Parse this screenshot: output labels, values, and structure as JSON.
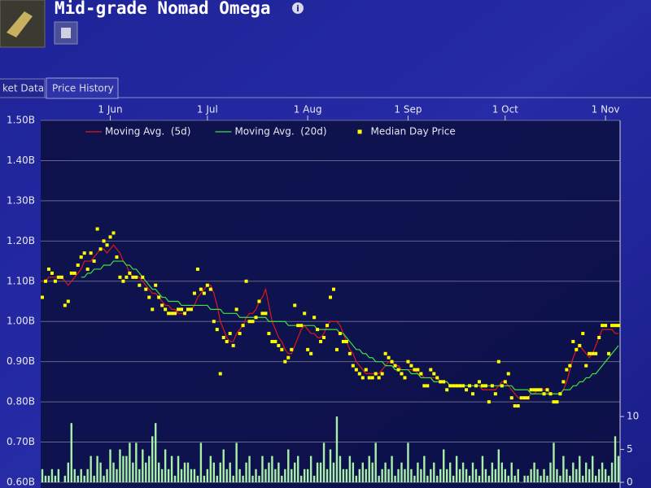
{
  "header": {
    "title": "Mid-grade Nomad Omega"
  },
  "tabs": [
    "ket Data",
    "Price History"
  ],
  "chart_data": {
    "type": "line",
    "categories": [
      null,
      null,
      null,
      null,
      null,
      null,
      null,
      null,
      null,
      null,
      null,
      null,
      null,
      null,
      null,
      null,
      null,
      null,
      null,
      null,
      null,
      "1 Jun",
      null,
      null,
      null,
      null,
      null,
      null,
      null,
      null,
      null,
      null,
      null,
      null,
      null,
      null,
      null,
      null,
      null,
      null,
      null,
      null,
      null,
      null,
      null,
      null,
      null,
      null,
      null,
      null,
      null,
      "1 Jul",
      null,
      null,
      null,
      null,
      null,
      null,
      null,
      null,
      null,
      null,
      null,
      null,
      null,
      null,
      null,
      null,
      null,
      null,
      null,
      null,
      null,
      null,
      null,
      null,
      null,
      null,
      null,
      null,
      null,
      null,
      "1 Aug",
      null,
      null,
      null,
      null,
      null,
      null,
      null,
      null,
      null,
      null,
      null,
      null,
      null,
      null,
      null,
      null,
      null,
      null,
      null,
      null,
      null,
      null,
      null,
      null,
      null,
      null,
      null,
      null,
      null,
      null,
      "1 Sep",
      null,
      null,
      null,
      null,
      null,
      null,
      null,
      null,
      null,
      null,
      null,
      null,
      null,
      null,
      null,
      null,
      null,
      null,
      null,
      null,
      null,
      null,
      null,
      null,
      null,
      null,
      null,
      null,
      null,
      "1 Oct",
      null,
      null,
      null,
      null,
      null,
      null,
      null,
      null,
      null,
      null,
      null,
      null,
      null,
      null,
      null,
      null,
      null,
      null,
      null,
      null,
      null,
      null,
      null,
      null,
      null,
      null,
      null,
      null,
      null,
      null,
      "1 Nov",
      null,
      null,
      null,
      null
    ],
    "ylim": [
      0.6,
      1.5
    ],
    "yticks": [
      {
        "value": 0.6,
        "label": "0.60B"
      },
      {
        "value": 0.7,
        "label": "0.70B"
      },
      {
        "value": 0.8,
        "label": "0.80B"
      },
      {
        "value": 0.9,
        "label": "0.90B"
      },
      {
        "value": 1.0,
        "label": "1.00B"
      },
      {
        "value": 1.1,
        "label": "1.10B"
      },
      {
        "value": 1.2,
        "label": "1.20B"
      },
      {
        "value": 1.3,
        "label": "1.30B"
      },
      {
        "value": 1.4,
        "label": "1.40B"
      },
      {
        "value": 1.5,
        "label": "1.50B"
      }
    ],
    "y2lim": [
      0,
      55
    ],
    "y2ticks": [
      0,
      5,
      10
    ],
    "grid": true,
    "legend": "top",
    "series": [
      {
        "type": "bar",
        "axis": "y2",
        "color": "#a8f0a8",
        "values": [
          2,
          1,
          1,
          2,
          1,
          2,
          0,
          1,
          3,
          9,
          2,
          1,
          2,
          1,
          2,
          4,
          1,
          4,
          3,
          1,
          2,
          5,
          3,
          2,
          5,
          4,
          4,
          6,
          3,
          6,
          2,
          5,
          3,
          4,
          7,
          9,
          3,
          2,
          5,
          2,
          4,
          1,
          4,
          2,
          3,
          3,
          2,
          2,
          1,
          6,
          1,
          2,
          4,
          3,
          1,
          3,
          5,
          2,
          3,
          1,
          6,
          2,
          1,
          3,
          4,
          1,
          2,
          1,
          4,
          2,
          3,
          4,
          2,
          3,
          1,
          2,
          5,
          2,
          3,
          4,
          1,
          2,
          2,
          4,
          1,
          3,
          3,
          6,
          2,
          5,
          3,
          10,
          4,
          2,
          2,
          4,
          3,
          1,
          2,
          3,
          2,
          4,
          3,
          6,
          1,
          2,
          3,
          2,
          4,
          1,
          2,
          3,
          2,
          6,
          2,
          1,
          3,
          2,
          4,
          1,
          2,
          3,
          1,
          2,
          5,
          2,
          3,
          1,
          4,
          2,
          3,
          2,
          1,
          3,
          2,
          1,
          4,
          2,
          1,
          3,
          2,
          5,
          3,
          2,
          1,
          3,
          1,
          2,
          0,
          1,
          1,
          2,
          3,
          2,
          1,
          2,
          1,
          3,
          6,
          2,
          1,
          4,
          2,
          1,
          3,
          2,
          4,
          1,
          3,
          2,
          4,
          1,
          2,
          3,
          2,
          1,
          3,
          7,
          4
        ]
      },
      {
        "type": "line",
        "name": "Moving Avg.  (5d)",
        "color": "#e01818",
        "values": [
          1.1,
          1.1,
          1.11,
          1.11,
          1.11,
          1.11,
          1.11,
          1.1,
          1.09,
          1.1,
          1.11,
          1.12,
          1.13,
          1.15,
          1.15,
          1.15,
          1.16,
          1.17,
          1.18,
          1.18,
          1.17,
          1.18,
          1.19,
          1.18,
          1.17,
          1.15,
          1.14,
          1.12,
          1.11,
          1.11,
          1.11,
          1.1,
          1.09,
          1.08,
          1.07,
          1.07,
          1.06,
          1.05,
          1.04,
          1.04,
          1.03,
          1.03,
          1.02,
          1.02,
          1.02,
          1.03,
          1.03,
          1.04,
          1.06,
          1.07,
          1.08,
          1.09,
          1.09,
          1.07,
          1.04,
          1.0,
          0.98,
          0.96,
          0.95,
          0.95,
          0.97,
          0.98,
          0.99,
          1.01,
          1.02,
          1.02,
          1.03,
          1.05,
          1.06,
          1.08,
          1.04,
          1.0,
          0.98,
          0.96,
          0.95,
          0.93,
          0.92,
          0.92,
          0.94,
          0.96,
          0.98,
          0.99,
          0.98,
          0.97,
          0.97,
          0.96,
          0.96,
          0.97,
          0.99,
          1.0,
          1.0,
          1.0,
          0.99,
          0.97,
          0.95,
          0.93,
          0.92,
          0.9,
          0.89,
          0.88,
          0.87,
          0.87,
          0.87,
          0.87,
          0.87,
          0.88,
          0.89,
          0.9,
          0.9,
          0.89,
          0.89,
          0.88,
          0.88,
          0.88,
          0.88,
          0.88,
          0.87,
          0.87,
          0.86,
          0.86,
          0.86,
          0.86,
          0.86,
          0.85,
          0.85,
          0.85,
          0.84,
          0.84,
          0.84,
          0.84,
          0.84,
          0.84,
          0.84,
          0.84,
          0.84,
          0.84,
          0.83,
          0.83,
          0.83,
          0.83,
          0.83,
          0.84,
          0.85,
          0.85,
          0.84,
          0.83,
          0.82,
          0.81,
          0.81,
          0.81,
          0.81,
          0.82,
          0.82,
          0.83,
          0.83,
          0.83,
          0.83,
          0.82,
          0.82,
          0.82,
          0.82,
          0.83,
          0.85,
          0.88,
          0.91,
          0.93,
          0.94,
          0.93,
          0.92,
          0.91,
          0.92,
          0.94,
          0.96,
          0.98,
          0.98,
          0.98,
          0.98,
          0.97,
          0.97
        ]
      },
      {
        "type": "line",
        "name": "Moving Avg.  (20d)",
        "color": "#40e040",
        "values": [
          null,
          null,
          null,
          null,
          null,
          null,
          null,
          null,
          null,
          null,
          null,
          null,
          1.11,
          1.11,
          1.12,
          1.12,
          1.13,
          1.13,
          1.13,
          1.14,
          1.14,
          1.14,
          1.15,
          1.15,
          1.15,
          1.15,
          1.14,
          1.14,
          1.13,
          1.13,
          1.12,
          1.11,
          1.1,
          1.09,
          1.08,
          1.08,
          1.07,
          1.06,
          1.06,
          1.05,
          1.05,
          1.05,
          1.05,
          1.04,
          1.04,
          1.04,
          1.04,
          1.04,
          1.04,
          1.04,
          1.04,
          1.04,
          1.03,
          1.03,
          1.03,
          1.03,
          1.02,
          1.02,
          1.02,
          1.02,
          1.02,
          1.01,
          1.01,
          1.01,
          1.01,
          1.01,
          1.01,
          1.01,
          1.01,
          1.01,
          1.0,
          1.0,
          1.0,
          1.0,
          1.0,
          1.0,
          0.99,
          0.99,
          0.99,
          0.99,
          0.99,
          0.99,
          0.99,
          0.99,
          0.99,
          0.98,
          0.98,
          0.98,
          0.98,
          0.98,
          0.98,
          0.98,
          0.97,
          0.97,
          0.96,
          0.95,
          0.94,
          0.93,
          0.93,
          0.92,
          0.92,
          0.91,
          0.91,
          0.9,
          0.9,
          0.9,
          0.89,
          0.89,
          0.89,
          0.88,
          0.88,
          0.88,
          0.88,
          0.88,
          0.87,
          0.87,
          0.87,
          0.86,
          0.86,
          0.86,
          0.86,
          0.85,
          0.85,
          0.85,
          0.85,
          0.85,
          0.84,
          0.84,
          0.84,
          0.84,
          0.84,
          0.84,
          0.84,
          0.84,
          0.84,
          0.84,
          0.84,
          0.84,
          0.84,
          0.84,
          0.84,
          0.84,
          0.84,
          0.84,
          0.84,
          0.84,
          0.83,
          0.83,
          0.83,
          0.83,
          0.83,
          0.82,
          0.82,
          0.82,
          0.82,
          0.82,
          0.82,
          0.82,
          0.82,
          0.82,
          0.82,
          0.83,
          0.83,
          0.83,
          0.84,
          0.84,
          0.85,
          0.85,
          0.86,
          0.86,
          0.87,
          0.87,
          0.88,
          0.89,
          0.9,
          0.91,
          0.92,
          0.93,
          0.94
        ]
      },
      {
        "type": "scatter",
        "name": "Median Day Price",
        "color": "#ffff00",
        "values": [
          1.06,
          1.1,
          1.13,
          1.12,
          1.1,
          1.11,
          1.11,
          1.04,
          1.05,
          1.12,
          1.12,
          1.14,
          1.16,
          1.17,
          1.13,
          1.17,
          1.15,
          1.23,
          1.18,
          1.2,
          1.19,
          1.21,
          1.22,
          1.16,
          1.11,
          1.1,
          1.11,
          1.12,
          1.11,
          1.11,
          1.09,
          1.11,
          1.08,
          1.06,
          1.03,
          1.09,
          1.06,
          1.04,
          1.03,
          1.02,
          1.02,
          1.02,
          1.03,
          1.03,
          1.02,
          1.03,
          1.03,
          1.07,
          1.13,
          1.08,
          1.07,
          1.09,
          1.08,
          1.0,
          0.98,
          0.87,
          0.96,
          0.95,
          0.97,
          0.94,
          1.03,
          0.97,
          0.99,
          1.1,
          1.0,
          1.0,
          1.01,
          1.05,
          1.02,
          1.02,
          0.97,
          0.95,
          0.95,
          0.94,
          0.93,
          0.9,
          0.91,
          0.93,
          1.04,
          0.99,
          0.99,
          1.02,
          0.93,
          0.92,
          1.01,
          0.98,
          0.95,
          0.96,
          0.99,
          1.06,
          1.08,
          0.93,
          0.97,
          0.95,
          0.95,
          0.92,
          0.89,
          0.88,
          0.87,
          0.86,
          0.88,
          0.86,
          0.86,
          0.87,
          0.86,
          0.87,
          0.92,
          0.91,
          0.9,
          0.89,
          0.88,
          0.87,
          0.86,
          0.9,
          0.89,
          0.88,
          0.88,
          0.87,
          0.84,
          0.84,
          0.88,
          0.87,
          0.86,
          0.85,
          0.85,
          0.83,
          0.84,
          0.84,
          0.84,
          0.84,
          0.84,
          0.83,
          0.84,
          0.82,
          0.84,
          0.85,
          0.84,
          0.84,
          0.8,
          0.84,
          0.82,
          0.9,
          0.84,
          0.85,
          0.87,
          0.81,
          0.79,
          0.79,
          0.81,
          0.81,
          0.81,
          0.83,
          0.83,
          0.83,
          0.83,
          0.82,
          0.83,
          0.82,
          0.8,
          0.8,
          0.82,
          0.85,
          0.88,
          0.89,
          0.95,
          0.93,
          0.94,
          0.97,
          0.89,
          0.92,
          0.92,
          0.92,
          0.96,
          0.99,
          0.99,
          0.92,
          0.99,
          0.99,
          0.99
        ]
      }
    ]
  }
}
